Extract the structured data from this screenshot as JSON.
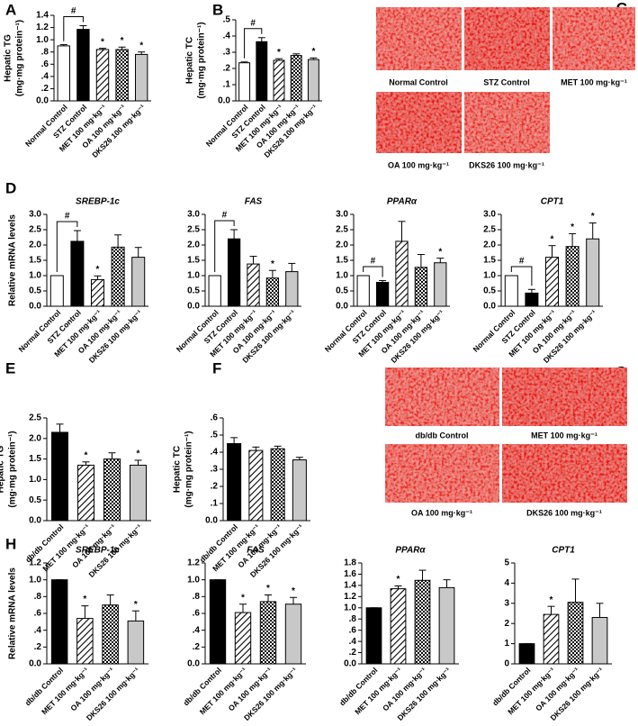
{
  "chart_data": [
    {
      "type": "bar",
      "label": "A",
      "ylabel": [
        "Hepatic TG",
        "(mg·mg protein⁻¹)"
      ],
      "categories": [
        "Normal Control",
        "STZ Control",
        "MET 100 mg·kg⁻¹",
        "OA 100 mg·kg⁻¹",
        "DKS26 100 mg·kg⁻¹"
      ],
      "values": [
        0.9,
        1.17,
        0.84,
        0.84,
        0.76
      ],
      "errors": [
        0.02,
        0.06,
        0.02,
        0.04,
        0.04
      ],
      "fills": [
        "white",
        "black",
        "hatch",
        "checker",
        "gray"
      ],
      "marks": [
        null,
        null,
        "*",
        "*",
        "*"
      ],
      "bracket": {
        "from": 0,
        "to": 1,
        "text": "#"
      },
      "ylim": [
        0,
        1.4
      ],
      "yticks": [
        {
          "value": 0,
          "label": "0.0"
        },
        {
          "value": 0.2,
          "label": ".2"
        },
        {
          "value": 0.4,
          "label": ".4"
        },
        {
          "value": 0.6,
          "label": ".6"
        },
        {
          "value": 0.8,
          "label": ".8"
        },
        {
          "value": 1,
          "label": "1.0"
        },
        1.2,
        1.4
      ]
    },
    {
      "type": "bar",
      "label": "B",
      "ylabel": [
        "Hepatic TC",
        "(mg·mg protein⁻¹)"
      ],
      "categories": [
        "Normal Control",
        "STZ Control",
        "MET 100 mg·kg⁻¹",
        "OA 100 mg·kg⁻¹",
        "DKS26 100 mg·kg⁻¹"
      ],
      "values": [
        0.235,
        0.365,
        0.25,
        0.28,
        0.255
      ],
      "errors": [
        0.005,
        0.025,
        0.01,
        0.01,
        0.01
      ],
      "fills": [
        "white",
        "black",
        "hatch",
        "checker",
        "gray"
      ],
      "marks": [
        null,
        null,
        "*",
        null,
        "*"
      ],
      "bracket": {
        "from": 0,
        "to": 1,
        "text": "#"
      },
      "ylim": [
        0,
        0.5
      ],
      "yticks": [
        {
          "value": 0,
          "label": "0.0"
        },
        {
          "value": 0.1,
          "label": ".1"
        },
        {
          "value": 0.2,
          "label": ".2"
        },
        {
          "value": 0.3,
          "label": ".3"
        },
        {
          "value": 0.4,
          "label": ".4"
        },
        {
          "value": 0.5,
          "label": ".5"
        }
      ]
    },
    {
      "type": "bar",
      "label": "D",
      "title": "SREBP-1c",
      "ylabel": [
        "Relative mRNA levels"
      ],
      "categories": [
        "Normal Control",
        "STZ Control",
        "MET 100 mg·kg⁻¹",
        "OA 100 mg·kg⁻¹",
        "DKS26 100 mg·kg⁻¹"
      ],
      "values": [
        1.0,
        2.12,
        0.87,
        1.93,
        1.6
      ],
      "errors": [
        0,
        0.35,
        0.12,
        0.4,
        0.32
      ],
      "fills": [
        "white",
        "black",
        "hatch",
        "checker",
        "gray"
      ],
      "marks": [
        null,
        null,
        "*",
        null,
        null
      ],
      "bracket": {
        "from": 0,
        "to": 1,
        "text": "#"
      },
      "ylim": [
        0,
        3
      ],
      "yticks": [
        {
          "value": 0,
          "label": "0.0"
        },
        0.5,
        {
          "value": 1,
          "label": "1.0"
        },
        1.5,
        {
          "value": 2,
          "label": "2.0"
        },
        2.5,
        {
          "value": 3,
          "label": "3.0"
        }
      ]
    },
    {
      "type": "bar",
      "title": "FAS",
      "categories": [
        "Normal Control",
        "STZ Control",
        "MET 100 mg·kg⁻¹",
        "OA 100 mg·kg⁻¹",
        "DKS26 100 mg·kg⁻¹"
      ],
      "values": [
        1.0,
        2.2,
        1.38,
        0.92,
        1.13
      ],
      "errors": [
        0,
        0.3,
        0.25,
        0.25,
        0.27
      ],
      "fills": [
        "white",
        "black",
        "hatch",
        "checker",
        "gray"
      ],
      "marks": [
        null,
        null,
        null,
        "*",
        null
      ],
      "bracket": {
        "from": 0,
        "to": 1,
        "text": "#"
      },
      "ylim": [
        0,
        3
      ],
      "yticks": [
        {
          "value": 0,
          "label": "0.0"
        },
        0.5,
        {
          "value": 1,
          "label": "1.0"
        },
        1.5,
        {
          "value": 2,
          "label": "2.0"
        },
        2.5,
        {
          "value": 3,
          "label": "3.0"
        }
      ]
    },
    {
      "type": "bar",
      "title": "PPARα",
      "categories": [
        "Normal Control",
        "STZ Control",
        "MET 100 mg·kg⁻¹",
        "OA 100 mg·kg⁻¹",
        "DKS26 100 mg·kg⁻¹"
      ],
      "values": [
        1.0,
        0.78,
        2.12,
        1.27,
        1.42
      ],
      "errors": [
        0,
        0.06,
        0.65,
        0.42,
        0.15
      ],
      "fills": [
        "white",
        "black",
        "hatch",
        "checker",
        "gray"
      ],
      "marks": [
        null,
        null,
        null,
        null,
        "*"
      ],
      "bracket": {
        "from": 0,
        "to": 1,
        "text": "#"
      },
      "ylim": [
        0,
        3
      ],
      "yticks": [
        {
          "value": 0,
          "label": "0.0"
        },
        0.5,
        {
          "value": 1,
          "label": "1.0"
        },
        1.5,
        {
          "value": 2,
          "label": "2.0"
        },
        2.5,
        {
          "value": 3,
          "label": "3.0"
        }
      ]
    },
    {
      "type": "bar",
      "title": "CPT1",
      "categories": [
        "Normal Control",
        "STZ Control",
        "MET 100 mg·kg⁻¹",
        "OA 100 mg·kg⁻¹",
        "DKS26 100 mg·kg⁻¹"
      ],
      "values": [
        1.0,
        0.43,
        1.6,
        1.95,
        2.2
      ],
      "errors": [
        0,
        0.12,
        0.38,
        0.42,
        0.52
      ],
      "fills": [
        "white",
        "black",
        "hatch",
        "checker",
        "gray"
      ],
      "marks": [
        null,
        null,
        "*",
        "*",
        "*"
      ],
      "bracket": {
        "from": 0,
        "to": 1,
        "text": "#"
      },
      "ylim": [
        0,
        3
      ],
      "yticks": [
        {
          "value": 0,
          "label": "0.0"
        },
        0.5,
        {
          "value": 1,
          "label": "1.0"
        },
        1.5,
        {
          "value": 2,
          "label": "2.0"
        },
        2.5,
        {
          "value": 3,
          "label": "3.0"
        }
      ]
    },
    {
      "type": "bar",
      "label": "E",
      "ylabel": [
        "Hepatic TG",
        "(mg·mg protein⁻¹)"
      ],
      "categories": [
        "db/db Control",
        "MET 100 mg·kg⁻¹",
        "OA 100 mg·kg⁻¹",
        "DKS26 100 mg·kg⁻¹"
      ],
      "values": [
        2.15,
        1.35,
        1.5,
        1.35
      ],
      "errors": [
        0.2,
        0.08,
        0.15,
        0.12
      ],
      "fills": [
        "black",
        "hatch",
        "checker",
        "gray"
      ],
      "marks": [
        null,
        "*",
        null,
        "*"
      ],
      "ylim": [
        0,
        2.5
      ],
      "yticks": [
        {
          "value": 0,
          "label": "0.0"
        },
        0.5,
        {
          "value": 1,
          "label": "1.0"
        },
        1.5,
        {
          "value": 2,
          "label": "2.0"
        },
        2.5
      ]
    },
    {
      "type": "bar",
      "label": "F",
      "ylabel": [
        "Hepatic TC",
        "(mg·mg protein⁻¹)"
      ],
      "categories": [
        "db/db Control",
        "MET 100 mg·kg⁻¹",
        "OA 100 mg·kg⁻¹",
        "DKS26 100 mg·kg⁻¹"
      ],
      "values": [
        0.45,
        0.41,
        0.42,
        0.355
      ],
      "errors": [
        0.035,
        0.02,
        0.015,
        0.015
      ],
      "fills": [
        "black",
        "hatch",
        "checker",
        "gray"
      ],
      "ylim": [
        0,
        0.6
      ],
      "yticks": [
        {
          "value": 0,
          "label": "0.0"
        },
        {
          "value": 0.1,
          "label": ".1"
        },
        {
          "value": 0.2,
          "label": ".2"
        },
        {
          "value": 0.3,
          "label": ".3"
        },
        {
          "value": 0.4,
          "label": ".4"
        },
        {
          "value": 0.5,
          "label": ".5"
        },
        {
          "value": 0.6,
          "label": ".6"
        }
      ]
    },
    {
      "type": "bar",
      "label": "H",
      "title": "SREBP-1c",
      "ylabel": [
        "Relative mRNA levels"
      ],
      "categories": [
        "db/db Control",
        "MET 100 mg·kg⁻¹",
        "OA 100 mg·kg⁻¹",
        "DKS26 100 mg·kg⁻¹"
      ],
      "values": [
        1.0,
        0.54,
        0.7,
        0.51
      ],
      "errors": [
        0,
        0.15,
        0.12,
        0.12
      ],
      "fills": [
        "black",
        "hatch",
        "checker",
        "gray"
      ],
      "marks": [
        null,
        "*",
        null,
        "*"
      ],
      "ylim": [
        0,
        1.2
      ],
      "yticks": [
        {
          "value": 0,
          "label": "0.0"
        },
        {
          "value": 0.2,
          "label": ".2"
        },
        {
          "value": 0.4,
          "label": ".4"
        },
        {
          "value": 0.6,
          "label": ".6"
        },
        {
          "value": 0.8,
          "label": ".8"
        },
        {
          "value": 1,
          "label": "1.0"
        },
        1.2
      ]
    },
    {
      "type": "bar",
      "title": "FAS",
      "categories": [
        "db/db Control",
        "MET 100 mg·kg⁻¹",
        "OA 100 mg·kg⁻¹",
        "DKS26 100 mg·kg⁻¹"
      ],
      "values": [
        1.0,
        0.61,
        0.74,
        0.71
      ],
      "errors": [
        0,
        0.1,
        0.08,
        0.08
      ],
      "fills": [
        "black",
        "hatch",
        "checker",
        "gray"
      ],
      "marks": [
        null,
        "*",
        "*",
        "*"
      ],
      "ylim": [
        0,
        1.2
      ],
      "yticks": [
        {
          "value": 0,
          "label": "0.0"
        },
        {
          "value": 0.2,
          "label": ".2"
        },
        {
          "value": 0.4,
          "label": ".4"
        },
        {
          "value": 0.6,
          "label": ".6"
        },
        {
          "value": 0.8,
          "label": ".8"
        },
        {
          "value": 1,
          "label": "1.0"
        },
        1.2
      ]
    },
    {
      "type": "bar",
      "title": "PPARα",
      "categories": [
        "db/db Control",
        "MET 100 mg·kg⁻¹",
        "OA 100 mg·kg⁻¹",
        "DKS26 100 mg·kg⁻¹"
      ],
      "values": [
        1.0,
        1.34,
        1.49,
        1.36
      ],
      "errors": [
        0,
        0.05,
        0.18,
        0.14
      ],
      "fills": [
        "black",
        "hatch",
        "checker",
        "gray"
      ],
      "marks": [
        null,
        "*",
        null,
        null
      ],
      "ylim": [
        0,
        1.8
      ],
      "yticks": [
        {
          "value": 0,
          "label": "0.0"
        },
        {
          "value": 0.2,
          "label": ".2"
        },
        {
          "value": 0.4,
          "label": ".4"
        },
        {
          "value": 0.6,
          "label": ".6"
        },
        {
          "value": 0.8,
          "label": ".8"
        },
        {
          "value": 1,
          "label": "1.0"
        },
        1.2,
        1.4,
        1.6,
        1.8
      ]
    },
    {
      "type": "bar",
      "title": "CPT1",
      "categories": [
        "db/db Control",
        "MET 100 mg·kg⁻¹",
        "OA 100 mg·kg⁻¹",
        "DKS26 100 mg·kg⁻¹"
      ],
      "values": [
        1.0,
        2.45,
        3.05,
        2.3
      ],
      "errors": [
        0,
        0.4,
        1.15,
        0.7
      ],
      "fills": [
        "black",
        "hatch",
        "checker",
        "gray"
      ],
      "marks": [
        null,
        "*",
        null,
        null
      ],
      "ylim": [
        0,
        5
      ],
      "yticks": [
        0,
        1,
        2,
        3,
        4,
        5
      ]
    }
  ],
  "image_panels": [
    {
      "label": "C",
      "captions": [
        "Normal Control",
        "STZ Control",
        "MET 100 mg·kg⁻¹",
        "OA 100 mg·kg⁻¹",
        "DKS26 100 mg·kg⁻¹"
      ]
    },
    {
      "label": "G",
      "captions": [
        "db/db Control",
        "MET 100 mg·kg⁻¹",
        "OA 100 mg·kg⁻¹",
        "DKS26 100 mg·kg⁻¹"
      ]
    }
  ]
}
